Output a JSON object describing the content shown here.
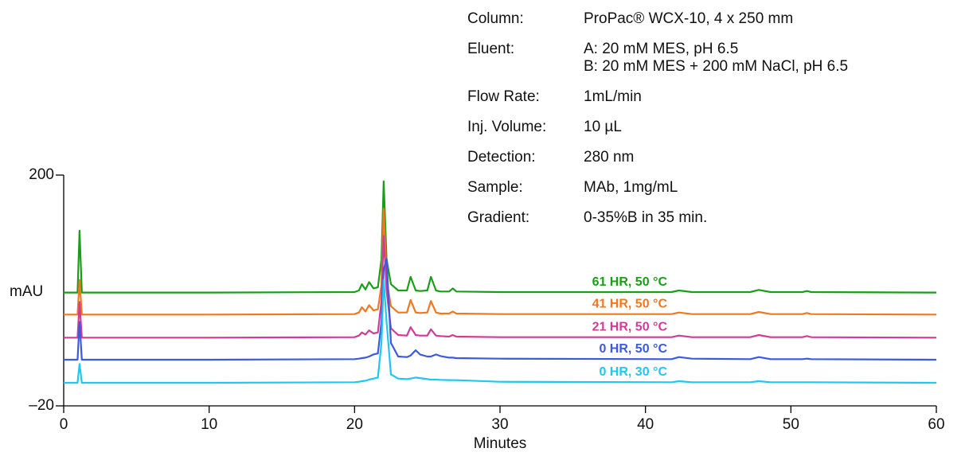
{
  "chart_data": {
    "type": "line",
    "xlabel": "Minutes",
    "ylabel": "mAU",
    "xlim": [
      0,
      60
    ],
    "ylim": [
      -20,
      200
    ],
    "xticks": [
      0,
      10,
      20,
      30,
      40,
      50,
      60
    ],
    "yticks": [
      {
        "value": 200,
        "label": "200"
      },
      {
        "value": -20,
        "label": "–20"
      }
    ],
    "grid": false,
    "annotations": [
      {
        "label": "Column:",
        "lines": [
          "ProPac® WCX-10, 4 x 250 mm"
        ]
      },
      {
        "label": "Eluent:",
        "lines": [
          "A: 20 mM MES, pH 6.5",
          "B: 20 mM MES + 200 mM NaCl, pH 6.5"
        ]
      },
      {
        "label": "Flow Rate:",
        "lines": [
          "1mL/min"
        ]
      },
      {
        "label": "Inj. Volume:",
        "lines": [
          "10 µL"
        ]
      },
      {
        "label": "Detection:",
        "lines": [
          "280 nm"
        ]
      },
      {
        "label": "Sample:",
        "lines": [
          "MAb, 1mg/mL"
        ]
      },
      {
        "label": "Gradient:",
        "lines": [
          "0-35%B in 35 min."
        ]
      }
    ],
    "x": [
      0,
      0.95,
      1.09,
      1.25,
      10,
      20,
      20.3,
      20.5,
      20.75,
      21.0,
      21.3,
      21.6,
      21.85,
      22.0,
      22.2,
      22.5,
      23.0,
      23.6,
      23.85,
      24.2,
      24.5,
      25.0,
      25.25,
      25.6,
      25.9,
      26.5,
      26.75,
      27.0,
      30,
      41.8,
      42.3,
      43.2,
      47.2,
      47.8,
      48.6,
      50.8,
      51.1,
      51.4,
      60
    ],
    "series": [
      {
        "name": "61 HR, 50 °C",
        "color": "#1a9e1a",
        "values": [
          88,
          88,
          147,
          88,
          88,
          88.5,
          90,
          96,
          91,
          98,
          92,
          93,
          120,
          194,
          120,
          96,
          90,
          90,
          103,
          90,
          89.5,
          90,
          103,
          90,
          89,
          89,
          92,
          89,
          88.5,
          88.5,
          90,
          88.5,
          88.5,
          90.5,
          88.5,
          88.5,
          89.5,
          88.5,
          88
        ]
      },
      {
        "name": "41 HR, 50 °C",
        "color": "#f07820",
        "values": [
          67,
          67,
          100,
          67,
          67,
          67.5,
          69,
          74,
          70,
          76,
          71,
          72,
          95,
          168,
          100,
          75,
          69,
          69,
          81,
          69,
          68.5,
          69,
          80,
          69,
          68,
          68,
          70,
          68,
          67.5,
          67.5,
          69,
          67.5,
          67.5,
          69.5,
          67.5,
          67.5,
          68.5,
          67.5,
          67
        ]
      },
      {
        "name": "21 HR, 50 °C",
        "color": "#d03c96",
        "values": [
          45,
          45,
          79,
          45,
          45,
          45.5,
          47,
          50,
          48,
          52,
          49,
          50,
          80,
          142,
          90,
          54,
          47.5,
          47,
          55,
          47.5,
          47,
          47,
          53,
          47,
          46.5,
          46,
          47.5,
          46,
          45.5,
          45.5,
          47,
          45.5,
          45.5,
          47.5,
          45.5,
          45.5,
          46.5,
          45.5,
          45
        ]
      },
      {
        "name": "0 HR, 50 °C",
        "color": "#3c5ae0",
        "values": [
          24,
          24,
          60,
          24,
          24,
          24.5,
          25,
          25.5,
          26,
          27,
          29,
          30,
          60,
          110,
          120,
          40,
          27,
          26.5,
          28,
          33,
          29,
          27,
          27,
          29,
          27.5,
          26,
          26,
          25.5,
          25,
          24.5,
          26.5,
          25,
          24.5,
          26.5,
          24.5,
          24.5,
          25,
          24.5,
          24
        ]
      },
      {
        "name": "0 HR, 30 °C",
        "color": "#1ec8f0",
        "values": [
          2,
          2,
          20,
          2,
          2,
          2.5,
          3,
          3.5,
          4,
          5,
          6,
          7,
          40,
          100,
          60,
          10,
          6,
          5.5,
          6,
          7,
          6.5,
          5.5,
          5,
          5,
          4.8,
          4.6,
          4.5,
          4.5,
          3,
          2.5,
          3.5,
          2.5,
          2.5,
          3.5,
          2.5,
          2.5,
          2.5,
          2.5,
          2
        ]
      }
    ]
  }
}
